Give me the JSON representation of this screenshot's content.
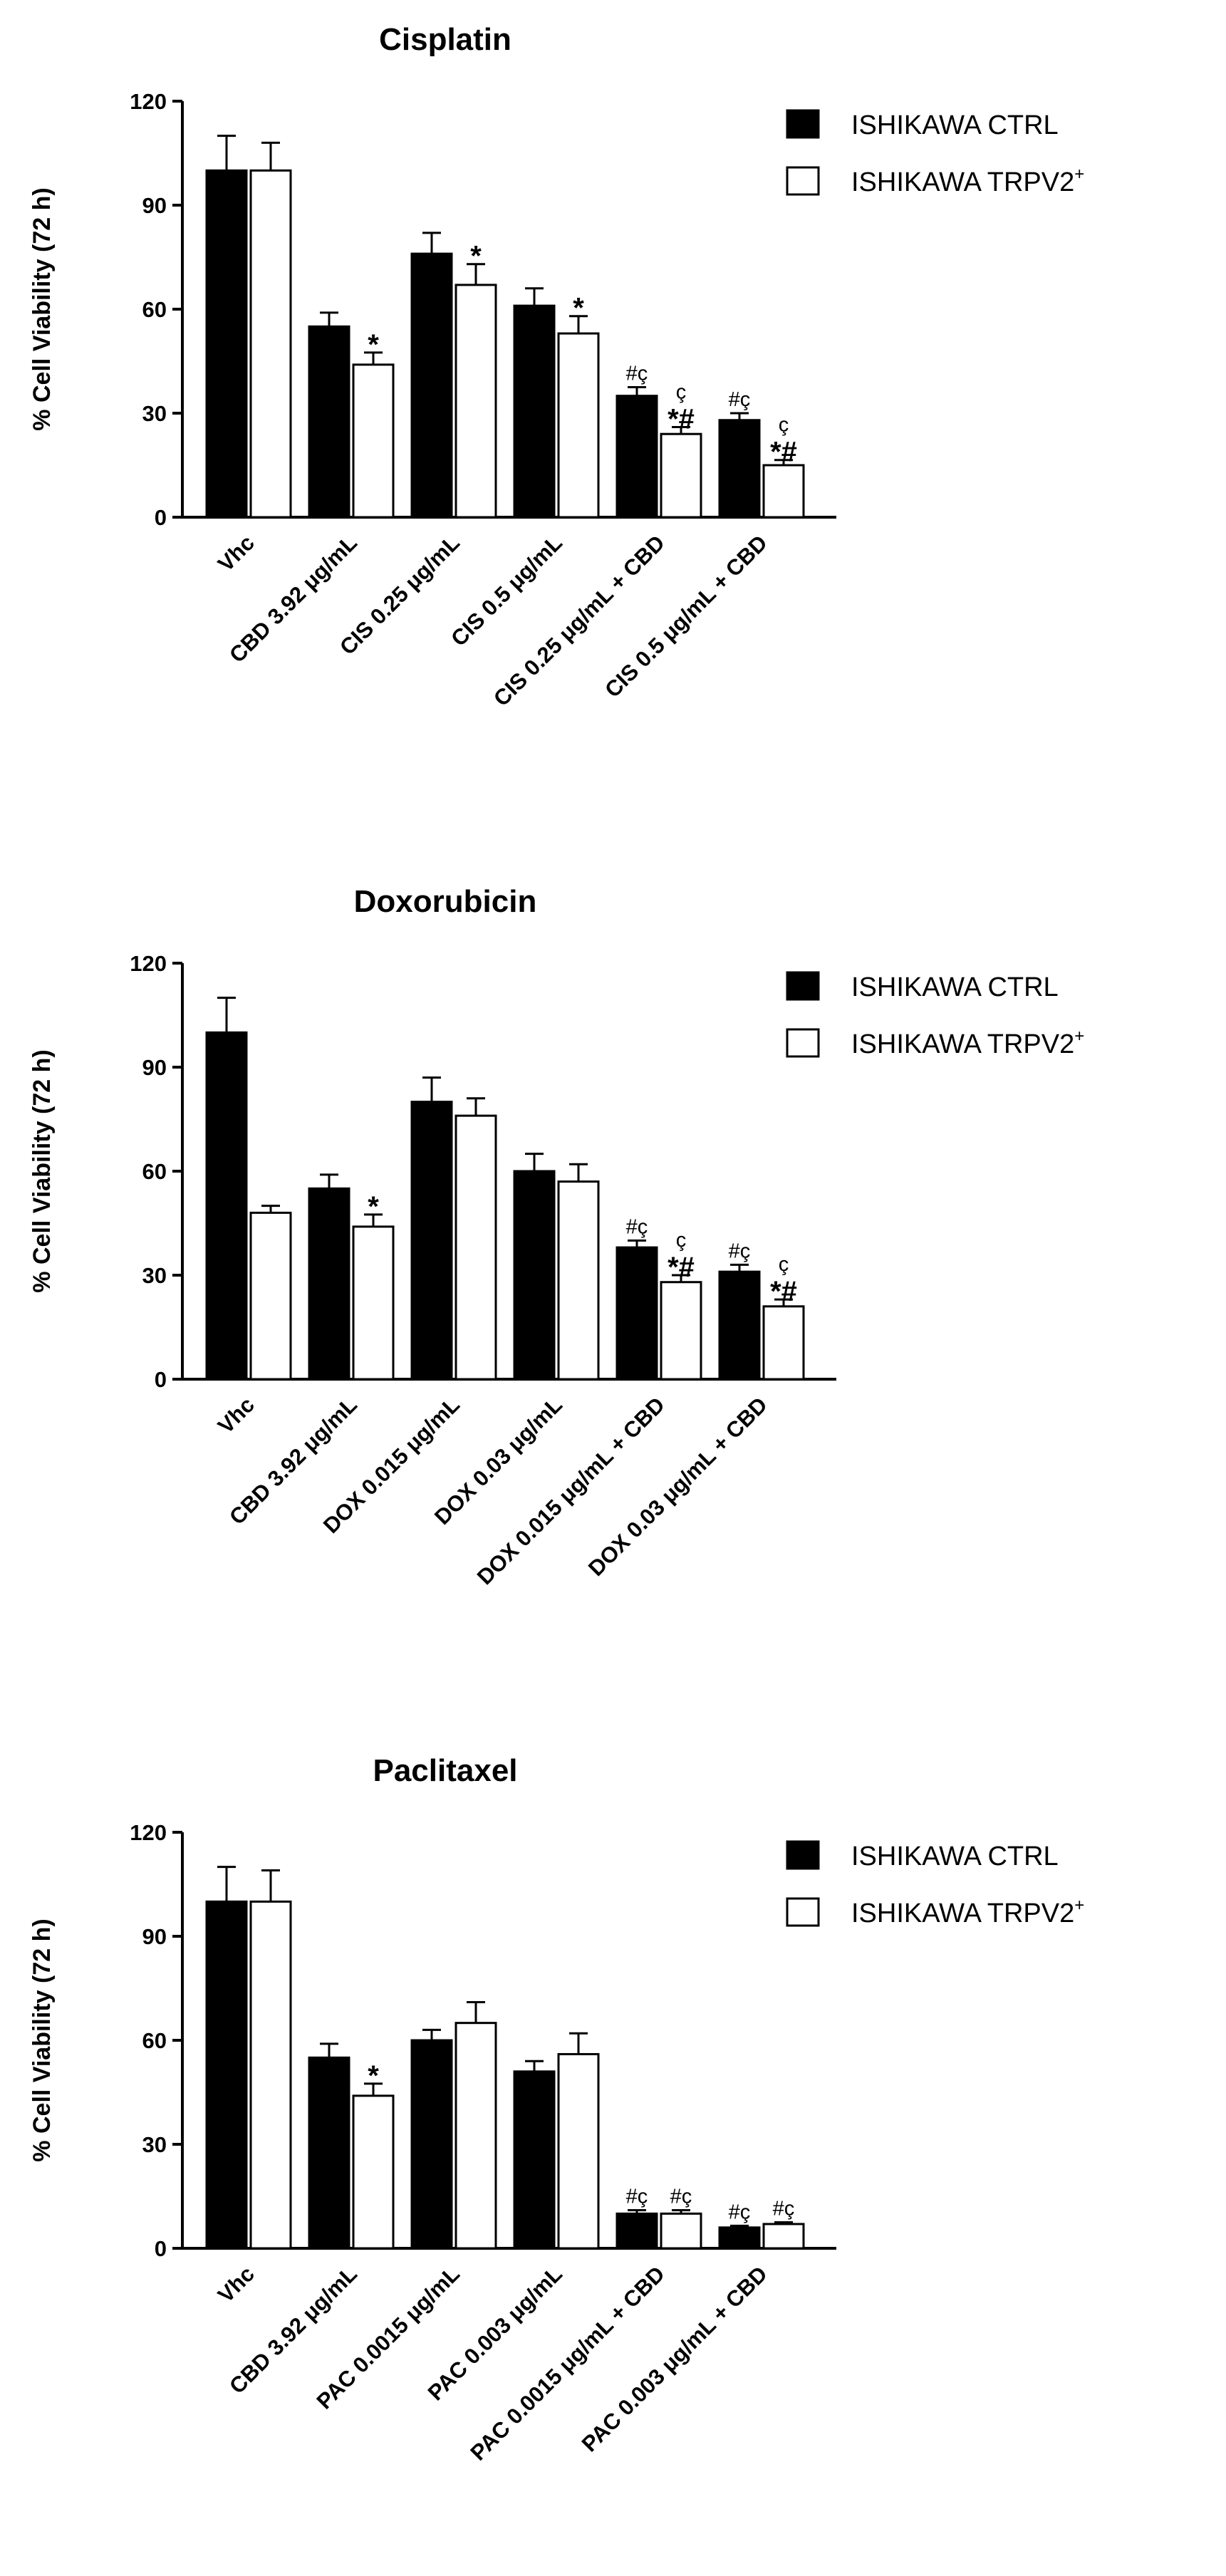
{
  "figure": {
    "colors": {
      "ctrl": "#000000",
      "trpv2": "#ffffff",
      "axis": "#000000"
    }
  },
  "chart_data": [
    {
      "type": "bar",
      "title": "Cisplatin",
      "ylabel": "% Cell Viability (72 h)",
      "xlabel": "",
      "ylim": [
        0,
        120
      ],
      "yticks": [
        "0",
        "30",
        "60",
        "90",
        "120"
      ],
      "categories": [
        "Vhc",
        "CBD 3.92 μg/mL",
        "CIS 0.25 μg/mL",
        "CIS 0.5 μg/mL",
        "CIS 0.25 μg/mL + CBD",
        "CIS 0.5 μg/mL + CBD"
      ],
      "legend": {
        "position": "right",
        "entries": [
          {
            "label": "ISHIKAWA CTRL"
          },
          {
            "label": "ISHIKAWA TRPV2",
            "sup": "+"
          }
        ]
      },
      "series": [
        {
          "name": "ISHIKAWA CTRL",
          "values": [
            100,
            55,
            76,
            61,
            35,
            28
          ],
          "errors": [
            10,
            4,
            6,
            5,
            2.5,
            2
          ],
          "annotations": [
            [],
            [],
            [],
            [],
            [
              "#ç"
            ],
            [
              "#ç"
            ]
          ]
        },
        {
          "name": "ISHIKAWA TRPV2+",
          "values": [
            100,
            44,
            67,
            53,
            24,
            15
          ],
          "errors": [
            8,
            3.5,
            6,
            5,
            2,
            1.5
          ],
          "annotations": [
            [],
            [
              "*"
            ],
            [
              "*"
            ],
            [
              "*"
            ],
            [
              "ç",
              "*#"
            ],
            [
              "ç",
              "*#"
            ]
          ]
        }
      ]
    },
    {
      "type": "bar",
      "title": "Doxorubicin",
      "ylabel": "% Cell Viability (72 h)",
      "xlabel": "",
      "ylim": [
        0,
        120
      ],
      "yticks": [
        "0",
        "30",
        "60",
        "90",
        "120"
      ],
      "categories": [
        "Vhc",
        "CBD 3.92 μg/mL",
        "DOX 0.015 μg/mL",
        "DOX 0.03 μg/mL",
        "DOX 0.015 μg/mL + CBD",
        "DOX 0.03 μg/mL + CBD"
      ],
      "legend": {
        "position": "right",
        "entries": [
          {
            "label": "ISHIKAWA CTRL"
          },
          {
            "label": "ISHIKAWA TRPV2",
            "sup": "+"
          }
        ]
      },
      "series": [
        {
          "name": "ISHIKAWA CTRL",
          "values": [
            100,
            55,
            80,
            60,
            38,
            31
          ],
          "errors": [
            10,
            4,
            7,
            5,
            2,
            2
          ],
          "annotations": [
            [],
            [],
            [],
            [],
            [
              "#ç"
            ],
            [
              "#ç"
            ]
          ]
        },
        {
          "name": "ISHIKAWA TRPV2+",
          "values": [
            48,
            44,
            76,
            57,
            28,
            21
          ],
          "errors": [
            2,
            3.5,
            5,
            5,
            2,
            2
          ],
          "annotations": [
            [],
            [
              "*"
            ],
            [],
            [],
            [
              "ç",
              "*#"
            ],
            [
              "ç",
              "*#"
            ]
          ]
        }
      ]
    },
    {
      "type": "bar",
      "title": "Paclitaxel",
      "ylabel": "% Cell Viability (72 h)",
      "xlabel": "",
      "ylim": [
        0,
        120
      ],
      "yticks": [
        "0",
        "30",
        "60",
        "90",
        "120"
      ],
      "categories": [
        "Vhc",
        "CBD 3.92 μg/mL",
        "PAC 0.0015 μg/mL",
        "PAC  0.003 μg/mL",
        "PAC 0.0015 μg/mL + CBD",
        "PAC 0.003 μg/mL + CBD"
      ],
      "legend": {
        "position": "right",
        "entries": [
          {
            "label": "ISHIKAWA CTRL"
          },
          {
            "label": "ISHIKAWA TRPV2",
            "sup": "+"
          }
        ]
      },
      "series": [
        {
          "name": "ISHIKAWA CTRL",
          "values": [
            100,
            55,
            60,
            51,
            10,
            6
          ],
          "errors": [
            10,
            4,
            3,
            3,
            1,
            0.5
          ],
          "annotations": [
            [],
            [],
            [],
            [],
            [
              "#ç"
            ],
            [
              "#ç"
            ]
          ]
        },
        {
          "name": "ISHIKAWA TRPV2+",
          "values": [
            100,
            44,
            65,
            56,
            10,
            7
          ],
          "errors": [
            9,
            3.5,
            6,
            6,
            1,
            0.5
          ],
          "annotations": [
            [],
            [
              "*"
            ],
            [],
            [],
            [
              "#ç"
            ],
            [
              "#ç"
            ]
          ]
        }
      ]
    }
  ]
}
